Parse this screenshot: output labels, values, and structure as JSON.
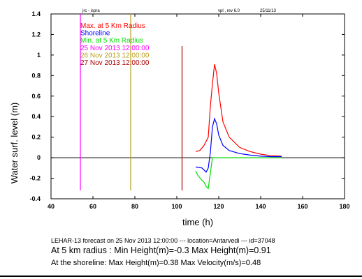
{
  "header": {
    "left": "jrc - ispra",
    "mid": "vpl , rev 6.0",
    "right": "25/11/13"
  },
  "chart_data": {
    "type": "line",
    "xlabel": "time (h)",
    "ylabel": "Water surf. level (m)",
    "xlim": [
      40,
      180
    ],
    "ylim": [
      -0.4,
      1.4
    ],
    "xticks": [
      "40",
      "60",
      "80",
      "100",
      "120",
      "140",
      "160",
      "180"
    ],
    "yticks": [
      "-0.4",
      "-0.2",
      "0",
      "0.2",
      "0.4",
      "0.6",
      "0.8",
      "1",
      "1.2",
      "1.4"
    ],
    "zero_line": true,
    "legend_position": "top-left",
    "series": [
      {
        "name": "Max. at 5 Km Radius",
        "color": "#ff0000",
        "x": [
          109,
          111,
          113,
          115,
          116,
          117,
          118,
          119,
          120,
          122,
          125,
          130,
          135,
          140,
          145,
          150
        ],
        "y": [
          0.06,
          0.07,
          0.12,
          0.2,
          0.5,
          0.72,
          0.91,
          0.82,
          0.63,
          0.35,
          0.2,
          0.1,
          0.06,
          0.035,
          0.02,
          0.015
        ]
      },
      {
        "name": "Shoreline",
        "color": "#0000ff",
        "x": [
          109,
          112,
          114,
          115,
          116,
          117,
          118,
          119,
          120,
          122,
          125,
          130,
          135,
          140,
          145,
          150
        ],
        "y": [
          -0.09,
          -0.1,
          -0.14,
          -0.1,
          0.05,
          0.3,
          0.38,
          0.33,
          0.22,
          0.12,
          0.07,
          0.04,
          0.025,
          0.015,
          0.01,
          0.01
        ]
      },
      {
        "name": "Min. at 5 Km Radius",
        "color": "#00dd00",
        "x": [
          109,
          110,
          112,
          113,
          114,
          115,
          116,
          117,
          120,
          130,
          140,
          150
        ],
        "y": [
          -0.13,
          -0.17,
          -0.22,
          -0.24,
          -0.28,
          -0.3,
          -0.15,
          0.0,
          0.0,
          0.0,
          0.0,
          0.0
        ]
      }
    ],
    "markers": [
      {
        "label": "25 Nov 2013 12:00:00",
        "x": 54,
        "color": "#ff00ff"
      },
      {
        "label": "26 Nov 2013 12:00:00",
        "x": 78,
        "color": "#b8a020"
      },
      {
        "label": "27 Nov 2013 12:00:00",
        "x": 102.5,
        "color": "#aa0000"
      }
    ]
  },
  "footer": {
    "line1": "LEHAR-13 forecast on 25 Nov 2013 12:00:00  --- location=Antarvedi  --- id=37048",
    "line2": "At 5 km radius : Min Height(m)=-0.3 Max Height(m)=0.91",
    "line3": "At the shoreline: Max Height(m)=0.38 Max Velocity(m/s)=0.48"
  }
}
